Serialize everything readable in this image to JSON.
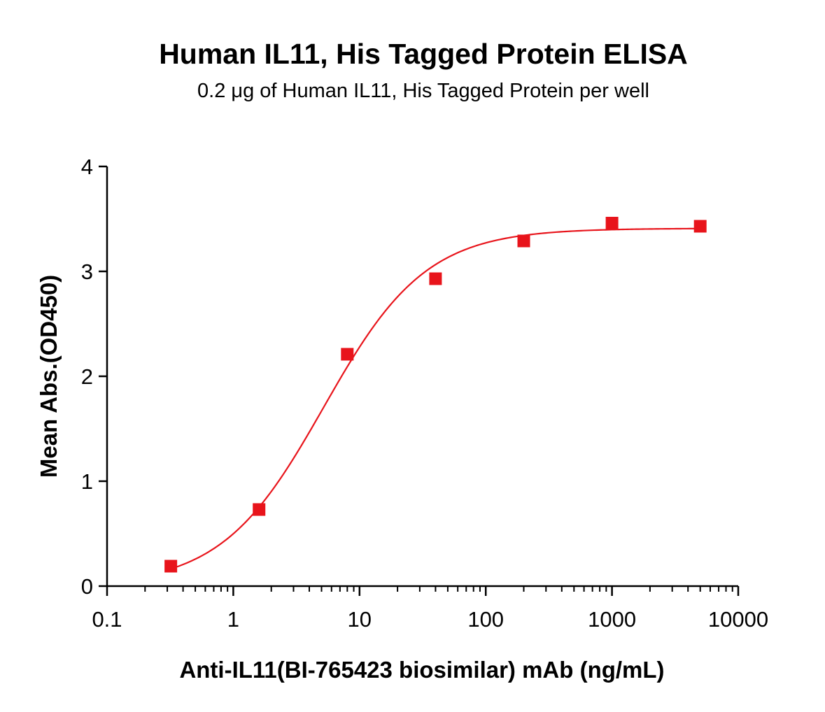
{
  "chart_data": {
    "type": "scatter",
    "title": "Human IL11, His Tagged Protein ELISA",
    "subtitle": "0.2 μg of Human IL11, His Tagged Protein per well",
    "xlabel": "Anti-IL11(BI-765423 biosimilar) mAb (ng/mL)",
    "ylabel": "Mean Abs.(OD450)",
    "x_scale": "log",
    "xlim": [
      0.1,
      10000
    ],
    "ylim": [
      0,
      4
    ],
    "x_ticks": [
      "0.1",
      "1",
      "10",
      "100",
      "1000",
      "10000"
    ],
    "y_ticks": [
      "0",
      "1",
      "2",
      "3",
      "4"
    ],
    "grid": false,
    "series": [
      {
        "marker": "square",
        "color": "#e8141b",
        "x": [
          0.32,
          1.6,
          8,
          40,
          200,
          1000,
          5000
        ],
        "y": [
          0.19,
          0.73,
          2.21,
          2.93,
          3.29,
          3.46,
          3.43
        ]
      }
    ],
    "fit_curve": {
      "type": "4PL",
      "color": "#e8141b",
      "bottom": 0.0,
      "top": 3.41,
      "ec50": 5.2,
      "hill": 1.07
    }
  }
}
